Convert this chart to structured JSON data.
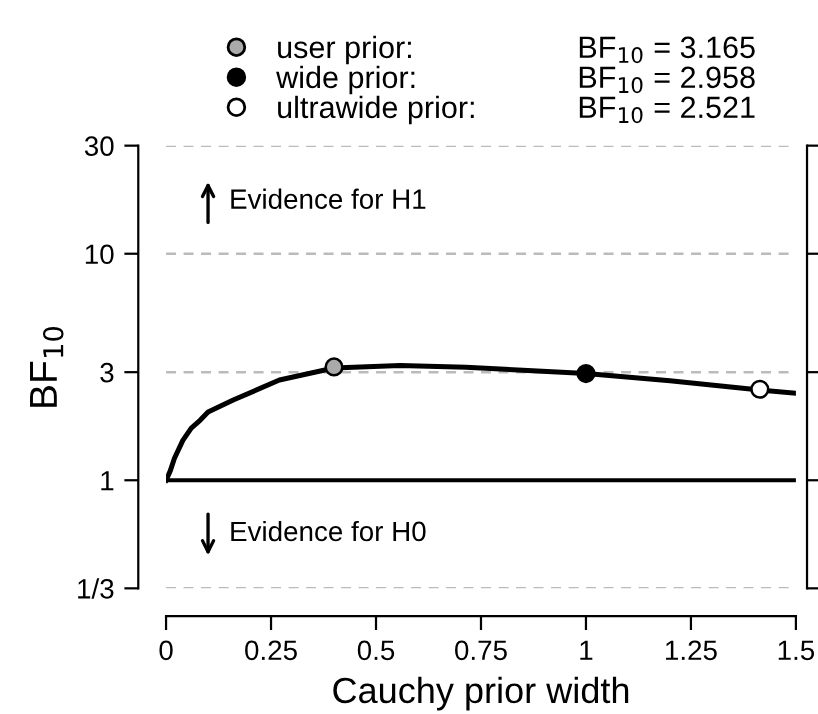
{
  "chart_data": {
    "type": "line",
    "xlabel": "Cauchy prior width",
    "ylabel": "BF$_{10}$",
    "xlim": [
      0,
      1.5
    ],
    "xticks": [
      0,
      0.25,
      0.5,
      0.75,
      1,
      1.25,
      1.5
    ],
    "ylim": [
      0.3333,
      30
    ],
    "yticks": [
      {
        "value": 0.3333,
        "label": "1/3"
      },
      1,
      3,
      10,
      30
    ],
    "log": true,
    "grid": "y",
    "legend": "top",
    "series": [
      {
        "color": "#000000",
        "x": [
          0,
          0.01,
          0.02,
          0.04,
          0.06,
          0.081,
          0.1,
          0.16,
          0.27,
          0.4,
          0.557,
          0.714,
          0.85,
          1.0,
          1.2,
          1.414,
          1.5
        ],
        "values": [
          1,
          1.1,
          1.25,
          1.5,
          1.7,
          1.84,
          2.0,
          2.26,
          2.77,
          3.13,
          3.21,
          3.15,
          3.06,
          2.96,
          2.75,
          2.5,
          2.42
        ]
      },
      {
        "type": "scatter",
        "name": "user prior:",
        "color": "#aaaaaa",
        "x": [
          0.4
        ],
        "values": [
          3.165
        ]
      },
      {
        "type": "scatter",
        "name": "wide prior:",
        "color": "#000000",
        "x": [
          1.0
        ],
        "values": [
          2.958
        ]
      },
      {
        "type": "scatter",
        "name": "ultrawide prior:",
        "color": "#ffffff",
        "x": [
          1.414
        ],
        "values": [
          2.521
        ]
      }
    ],
    "ref_lines": [
      {
        "axis": "y",
        "value": 1,
        "color": "#000000"
      }
    ],
    "annotations": [
      "BF$_{10}$ = 3.165",
      "BF$_{10}$ = 2.958",
      "BF$_{10}$ = 2.521",
      "Evidence for H1",
      "Evidence for H0"
    ]
  }
}
